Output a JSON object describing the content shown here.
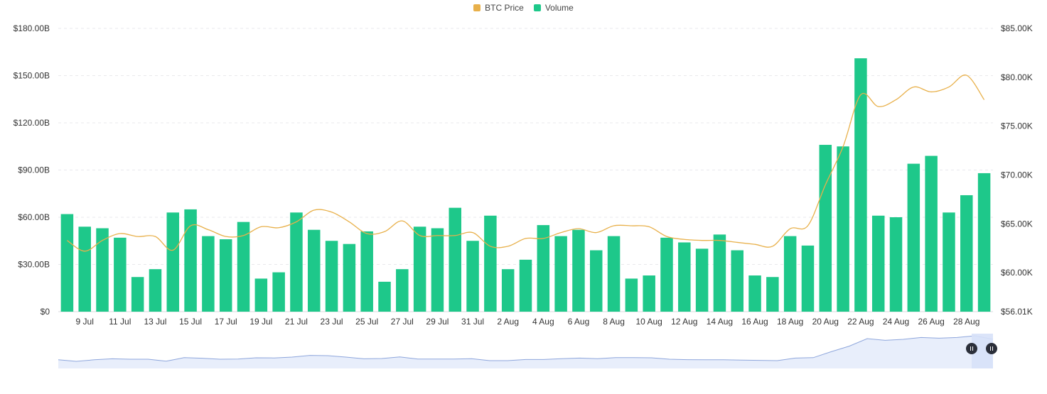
{
  "chart_data": {
    "type": "bar",
    "legend": [
      {
        "name": "BTC Price",
        "color": "#e8b04a"
      },
      {
        "name": "Volume",
        "color": "#1ec88a"
      }
    ],
    "x_tick_labels": [
      "9 Jul",
      "11 Jul",
      "13 Jul",
      "15 Jul",
      "17 Jul",
      "19 Jul",
      "21 Jul",
      "23 Jul",
      "25 Jul",
      "27 Jul",
      "29 Jul",
      "31 Jul",
      "2 Aug",
      "4 Aug",
      "6 Aug",
      "8 Aug",
      "10 Aug",
      "12 Aug",
      "14 Aug",
      "16 Aug",
      "18 Aug",
      "20 Aug",
      "22 Aug",
      "24 Aug",
      "26 Aug",
      "28 Aug"
    ],
    "y_left": {
      "ticks": [
        "$0",
        "$30.00B",
        "$60.00B",
        "$90.00B",
        "$120.00B",
        "$150.00B",
        "$180.00B"
      ],
      "ylim": [
        0,
        180
      ]
    },
    "y_right": {
      "ticks": [
        "$56.01K",
        "$60.00K",
        "$65.00K",
        "$70.00K",
        "$75.00K",
        "$80.00K",
        "$85.00K"
      ],
      "ylim": [
        56.01,
        85
      ]
    },
    "series": [
      {
        "name": "Volume",
        "type": "bar",
        "unit": "B USD",
        "color": "#1ec88a",
        "values": [
          62,
          54,
          53,
          47,
          22,
          27,
          63,
          65,
          48,
          46,
          57,
          21,
          25,
          63,
          52,
          45,
          43,
          51,
          19,
          27,
          54,
          53,
          66,
          45,
          61,
          27,
          33,
          55,
          48,
          52,
          39,
          48,
          21,
          23,
          47,
          44,
          40,
          49,
          39,
          23,
          22,
          48,
          42,
          106,
          105,
          161,
          61,
          60,
          94,
          99,
          63,
          74,
          88
        ]
      },
      {
        "name": "BTC Price",
        "type": "line",
        "unit": "K USD",
        "color": "#e8b04a",
        "values": [
          63.3,
          62.2,
          63.3,
          64.0,
          63.7,
          63.7,
          62.3,
          64.8,
          64.4,
          63.7,
          63.8,
          64.7,
          64.6,
          65.2,
          66.4,
          66.2,
          65.2,
          64.0,
          64.2,
          65.3,
          63.8,
          63.8,
          63.8,
          64.1,
          62.7,
          62.7,
          63.5,
          63.5,
          64.1,
          64.5,
          64.1,
          64.8,
          64.8,
          64.7,
          63.7,
          63.4,
          63.3,
          63.3,
          63.1,
          62.9,
          62.7,
          64.5,
          64.8,
          69.0,
          72.9,
          78.2,
          77.0,
          77.7,
          79.0,
          78.5,
          79.0,
          80.2,
          77.7
        ]
      }
    ],
    "grid": true
  }
}
